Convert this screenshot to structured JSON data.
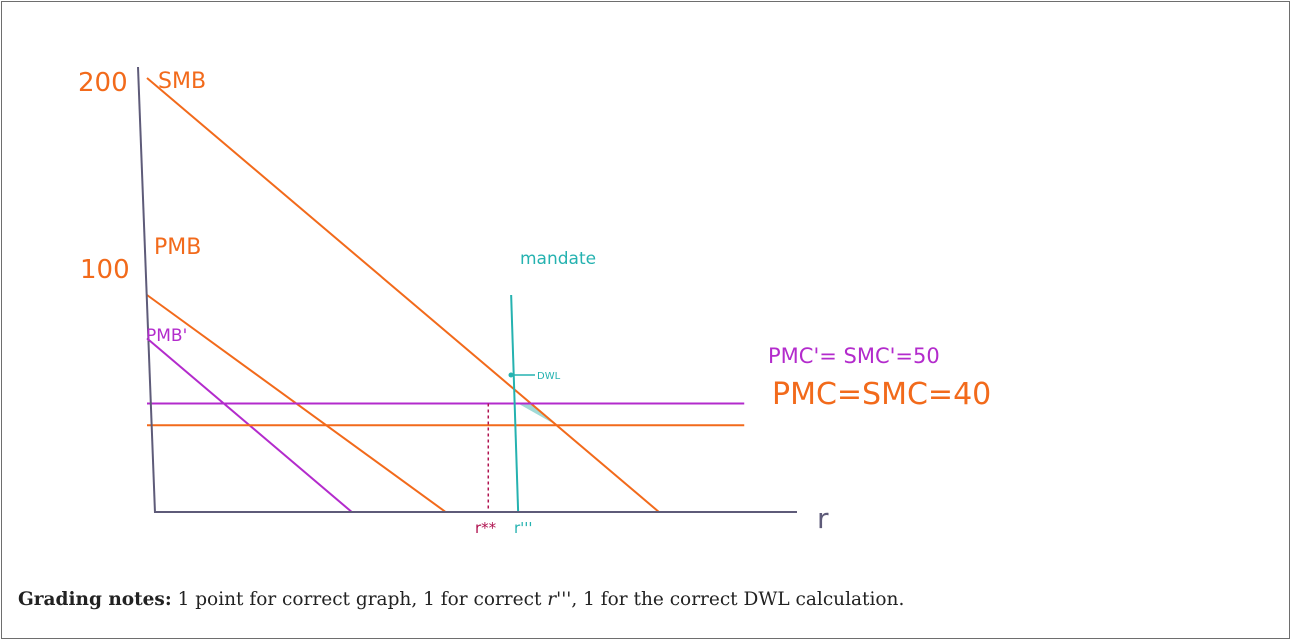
{
  "colors": {
    "orange": "#f26a1b",
    "purple": "#b32bcc",
    "teal": "#25b2b0",
    "crimson": "#b0124f",
    "axis": "#5e5b79",
    "dwl_fill": "#8fd3cf"
  },
  "chart_data": {
    "type": "line",
    "title": "",
    "xlabel": "r",
    "ylabel": "",
    "y_tick_labels": [
      "200",
      "100"
    ],
    "x_tick_labels": [
      "r**",
      "r'''"
    ],
    "series": [
      {
        "name": "SMB",
        "points": [
          [
            0,
            200
          ],
          [
            2.4,
            0
          ]
        ]
      },
      {
        "name": "PMB",
        "points": [
          [
            0,
            100
          ],
          [
            1.4,
            0
          ]
        ]
      },
      {
        "name": "PMB'",
        "points": [
          [
            0,
            80
          ],
          [
            0.96,
            0
          ]
        ]
      },
      {
        "name": "PMC'= SMC'=50",
        "points": [
          [
            0,
            50
          ],
          [
            2.8,
            50
          ]
        ]
      },
      {
        "name": "PMC=SMC=40",
        "points": [
          [
            0,
            40
          ],
          [
            2.8,
            40
          ]
        ]
      },
      {
        "name": "mandate",
        "points": [
          [
            1.74,
            100
          ],
          [
            1.74,
            0
          ]
        ]
      }
    ],
    "reference_line": {
      "label": "r**",
      "x": 1.6,
      "y_top": 50
    },
    "annotation": "DWL",
    "xlim": [
      0,
      3.0
    ],
    "ylim": [
      0,
      210
    ]
  },
  "labels": {
    "y200": "200",
    "y100": "100",
    "smb": "SMB",
    "pmb": "PMB",
    "pmb_prime": "PMB'",
    "pmc_prime": "PMC'= SMC'=50",
    "pmc": "PMC=SMC=40",
    "mandate": "mandate",
    "dwl": "DWL",
    "r_star": "r**",
    "r_triple": "r'''",
    "x_axis": "r"
  },
  "notes": {
    "bold": "Grading notes:",
    "part1": " 1 point for correct graph, 1 for correct ",
    "r_var": "r'''",
    "part2": ", 1 for the correct DWL calculation."
  }
}
